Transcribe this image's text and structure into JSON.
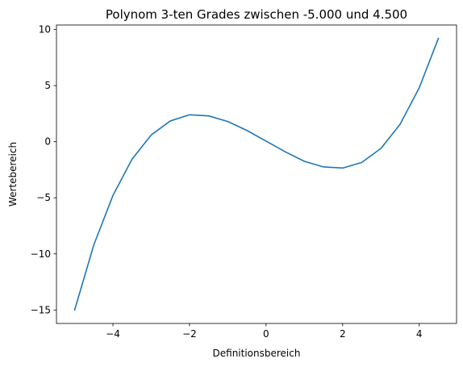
{
  "chart_data": {
    "type": "line",
    "title": "Polynom 3-ten Grades zwischen -5.000 und 4.500",
    "xlabel": "Definitionsbereich",
    "ylabel": "Wertebereich",
    "xlim": [
      -5.475,
      4.975
    ],
    "ylim": [
      -16.2,
      10.4
    ],
    "xticks": [
      -4,
      -2,
      0,
      2,
      4
    ],
    "xtick_labels": [
      "−4",
      "−2",
      "0",
      "2",
      "4"
    ],
    "yticks": [
      -15,
      -10,
      -5,
      0,
      5,
      10
    ],
    "ytick_labels": [
      "−15",
      "−10",
      "−5",
      "0",
      "5",
      "10"
    ],
    "grid": false,
    "line_color": "#1f77b4",
    "series": [
      {
        "x": [
          -5.0,
          -4.5,
          -4.0,
          -3.5,
          -3.0,
          -2.5,
          -2.0,
          -1.5,
          -1.0,
          -0.5,
          0.0,
          0.5,
          1.0,
          1.5,
          2.0,
          2.5,
          3.0,
          3.5,
          4.0,
          4.5
        ],
        "values": [
          -15.0,
          -9.2,
          -4.8,
          -1.55,
          0.6,
          1.85,
          2.4,
          2.3,
          1.8,
          1.0,
          0.05,
          -0.9,
          -1.75,
          -2.25,
          -2.35,
          -1.85,
          -0.6,
          1.55,
          4.8,
          9.2
        ]
      }
    ]
  }
}
